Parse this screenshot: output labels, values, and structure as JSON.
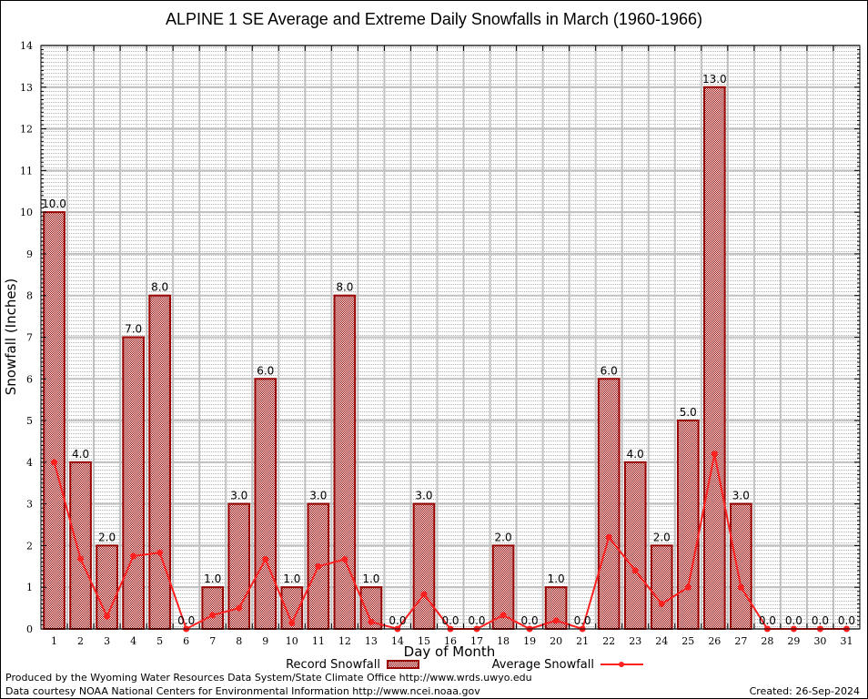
{
  "chart_data": {
    "type": "bar",
    "title": "ALPINE 1 SE Average and Extreme Daily Snowfalls in March (1960-1966)",
    "xlabel": "Day of Month",
    "ylabel": "Snowfall (Inches)",
    "ylim": [
      0,
      14
    ],
    "yticks": [
      0,
      1,
      2,
      3,
      4,
      5,
      6,
      7,
      8,
      9,
      10,
      11,
      12,
      13,
      14
    ],
    "grid": true,
    "legend_position": "bottom-center",
    "categories": [
      "1",
      "2",
      "3",
      "4",
      "5",
      "6",
      "7",
      "8",
      "9",
      "10",
      "11",
      "12",
      "13",
      "14",
      "15",
      "16",
      "17",
      "18",
      "19",
      "20",
      "21",
      "22",
      "23",
      "24",
      "25",
      "26",
      "27",
      "28",
      "29",
      "30",
      "31"
    ],
    "series": [
      {
        "name": "Record Snowfall",
        "type": "bar",
        "color": "#990000",
        "values": [
          10.0,
          4.0,
          2.0,
          7.0,
          8.0,
          0.0,
          1.0,
          3.0,
          6.0,
          1.0,
          3.0,
          8.0,
          1.0,
          0.0,
          3.0,
          0.0,
          0.0,
          2.0,
          0.0,
          1.0,
          0.0,
          6.0,
          4.0,
          2.0,
          5.0,
          13.0,
          3.0,
          0.0,
          0.0,
          0.0,
          0.0
        ],
        "labels": [
          "10.0",
          "4.0",
          "2.0",
          "7.0",
          "8.0",
          "0.0",
          "1.0",
          "3.0",
          "6.0",
          "1.0",
          "3.0",
          "8.0",
          "1.0",
          "0.0",
          "3.0",
          "0.0",
          "0.0",
          "2.0",
          "0.0",
          "1.0",
          "0.0",
          "6.0",
          "4.0",
          "2.0",
          "5.0",
          "13.0",
          "3.0",
          "0.0",
          "0.0",
          "0.0",
          "0.0"
        ]
      },
      {
        "name": "Average Snowfall",
        "type": "line",
        "color": "#ff2020",
        "values": [
          4.0,
          1.68,
          0.3,
          1.75,
          1.83,
          0.0,
          0.33,
          0.5,
          1.67,
          0.14,
          1.5,
          1.67,
          0.17,
          0.0,
          0.83,
          0.0,
          0.0,
          0.33,
          0.0,
          0.2,
          0.0,
          2.2,
          1.4,
          0.6,
          1.0,
          4.2,
          1.0,
          0.0,
          0.0,
          0.0,
          0.0
        ]
      }
    ]
  },
  "footer": {
    "line1": "Produced by the Wyoming Water Resources Data System/State Climate Office http://www.wrds.uwyo.edu",
    "line2": "Data courtesy NOAA National Centers for Environmental Information http://www.ncei.noaa.gov",
    "created": "Created: 26-Sep-2024"
  }
}
